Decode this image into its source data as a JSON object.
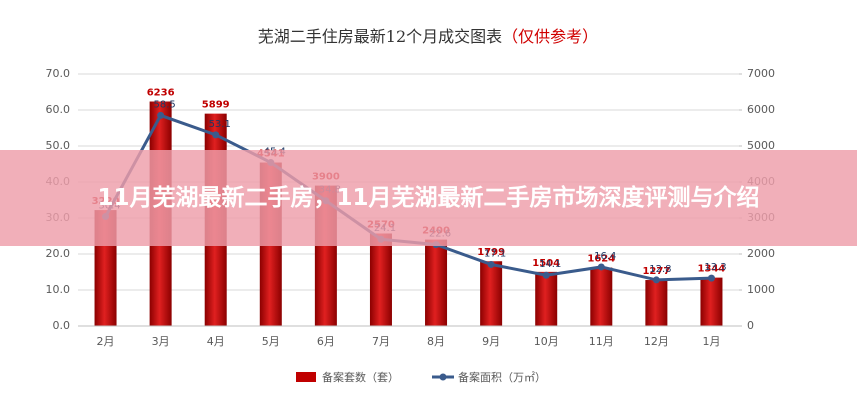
{
  "chart_data": {
    "type": "bar-line",
    "title": "芜湖二手住房最新12个月成交图表",
    "title_note": "（仅供参考）",
    "categories": [
      "2月",
      "3月",
      "4月",
      "5月",
      "6月",
      "7月",
      "8月",
      "9月",
      "10月",
      "11月",
      "12月",
      "1月"
    ],
    "series": [
      {
        "name": "备案套数（套）",
        "color": "#c00000",
        "axis": "y2",
        "type": "bar",
        "values": [
          3220,
          6236,
          5899,
          4541,
          3900,
          2570,
          2400,
          1799,
          1504,
          1624,
          1277,
          1344
        ]
      },
      {
        "name": "备案面积（万㎡）",
        "color": "#3a5b8c",
        "axis": "y",
        "type": "line",
        "values": [
          30.4,
          58.5,
          53.1,
          45.4,
          34.8,
          24.1,
          22.6,
          17.1,
          14.1,
          16.4,
          12.8,
          13.3
        ]
      }
    ],
    "ylim": [
      0,
      70
    ],
    "yticks": [
      {
        "value": 0,
        "label": "0.0"
      },
      {
        "value": 10,
        "label": "10.0"
      },
      {
        "value": 20,
        "label": "20.0"
      },
      {
        "value": 30,
        "label": "30.0"
      },
      {
        "value": 40,
        "label": "40.0"
      },
      {
        "value": 50,
        "label": "50.0"
      },
      {
        "value": 60,
        "label": "60.0"
      },
      {
        "value": 70,
        "label": "70.0"
      }
    ],
    "y2lim": [
      0,
      7000
    ],
    "y2ticks": [
      0,
      1000,
      2000,
      3000,
      4000,
      5000,
      6000,
      7000
    ],
    "legend": "bottom"
  },
  "overlay": {
    "text": "11月芜湖最新二手房，11月芜湖最新二手房市场深度评测与介绍"
  }
}
